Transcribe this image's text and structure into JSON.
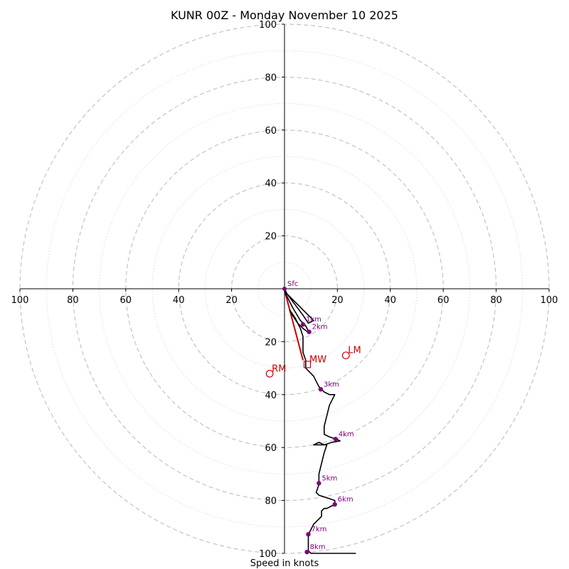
{
  "chart_data": {
    "type": "hodograph",
    "title": "KUNR 00Z - Monday November 10 2025",
    "xlabel": "Speed in knots",
    "axis_range": [
      -100,
      100
    ],
    "ring_major": [
      20,
      40,
      60,
      80,
      100
    ],
    "ring_minor": [
      10,
      30,
      50,
      70,
      90
    ],
    "x_tick_labels": [
      "100",
      "80",
      "60",
      "40",
      "20",
      "0",
      "20",
      "40",
      "60",
      "80",
      "100"
    ],
    "y_tick_labels_top": [
      "20",
      "40",
      "60",
      "80",
      "100"
    ],
    "y_tick_labels_bottom": [
      "20",
      "40",
      "60",
      "80",
      "100"
    ],
    "trace": [
      [
        0,
        0
      ],
      [
        1,
        -2
      ],
      [
        4,
        -6
      ],
      [
        7,
        -10
      ],
      [
        9,
        -13
      ],
      [
        11,
        -12
      ],
      [
        4,
        -5
      ],
      [
        0,
        -1
      ],
      [
        1,
        -3
      ],
      [
        3,
        -7
      ],
      [
        6,
        -12
      ],
      [
        8,
        -14
      ],
      [
        9,
        -16
      ],
      [
        9,
        -16.5
      ],
      [
        7,
        -15
      ],
      [
        5,
        -13
      ],
      [
        3,
        -10
      ],
      [
        2,
        -8
      ],
      [
        4,
        -11
      ],
      [
        6,
        -15
      ],
      [
        7,
        -18
      ],
      [
        7,
        -21
      ],
      [
        7,
        -24
      ],
      [
        8,
        -27
      ],
      [
        8,
        -30
      ],
      [
        9,
        -31
      ],
      [
        11,
        -33
      ],
      [
        12,
        -35
      ],
      [
        13,
        -37
      ],
      [
        14,
        -38
      ],
      [
        15,
        -39
      ],
      [
        17,
        -40
      ],
      [
        19,
        -40
      ],
      [
        18,
        -42
      ],
      [
        17,
        -44
      ],
      [
        16,
        -48
      ],
      [
        15,
        -52
      ],
      [
        15,
        -55
      ],
      [
        17,
        -56
      ],
      [
        20,
        -57
      ],
      [
        21,
        -57.5
      ],
      [
        18,
        -58
      ],
      [
        15,
        -59
      ],
      [
        11,
        -59
      ],
      [
        13,
        -58
      ],
      [
        15,
        -59
      ],
      [
        16,
        -59
      ],
      [
        15,
        -62
      ],
      [
        14,
        -66
      ],
      [
        13,
        -70
      ],
      [
        13,
        -74
      ],
      [
        12,
        -77
      ],
      [
        13,
        -78
      ],
      [
        16,
        -79
      ],
      [
        19,
        -80
      ],
      [
        19,
        -82
      ],
      [
        18,
        -82
      ],
      [
        16,
        -83
      ],
      [
        15,
        -83
      ],
      [
        14,
        -84
      ],
      [
        14,
        -86
      ],
      [
        12,
        -88
      ],
      [
        11,
        -89
      ],
      [
        10,
        -91
      ],
      [
        9,
        -93
      ],
      [
        9,
        -95
      ],
      [
        9,
        -97
      ],
      [
        9,
        -99
      ],
      [
        10,
        -100
      ],
      [
        14,
        -100
      ],
      [
        17,
        -100
      ],
      [
        20,
        -100
      ],
      [
        23,
        -100
      ],
      [
        26,
        -100
      ],
      [
        27,
        -100
      ]
    ],
    "km_markers": [
      {
        "label": "Sfc",
        "u": 0,
        "v": 0
      },
      {
        "label": "1km",
        "u": 7,
        "v": -13.5
      },
      {
        "label": "2km",
        "u": 9.3,
        "v": -16.3
      },
      {
        "label": "3km",
        "u": 13.7,
        "v": -38
      },
      {
        "label": "4km",
        "u": 19.3,
        "v": -56.8
      },
      {
        "label": "5km",
        "u": 13,
        "v": -73.5
      },
      {
        "label": "6km",
        "u": 19,
        "v": -81.5
      },
      {
        "label": "7km",
        "u": 9,
        "v": -92.8
      },
      {
        "label": "8km",
        "u": 8.5,
        "v": -99.5
      }
    ],
    "storm_motion": [
      {
        "label": "LM",
        "u": 23.2,
        "v": -25.2,
        "marker": "circle"
      },
      {
        "label": "MW",
        "u": 8.6,
        "v": -28.6,
        "marker": "square"
      },
      {
        "label": "RM",
        "u": -5.6,
        "v": -32.1,
        "marker": "circle"
      }
    ],
    "shear_vector": [
      [
        0,
        -0.5
      ],
      [
        7,
        -27
      ]
    ],
    "colors": {
      "trace": "#000000",
      "km_marker": "#800080",
      "storm_motion": "#cc0000",
      "ring": "#b8b8b8",
      "ring_minor": "#cfcfcf"
    }
  }
}
